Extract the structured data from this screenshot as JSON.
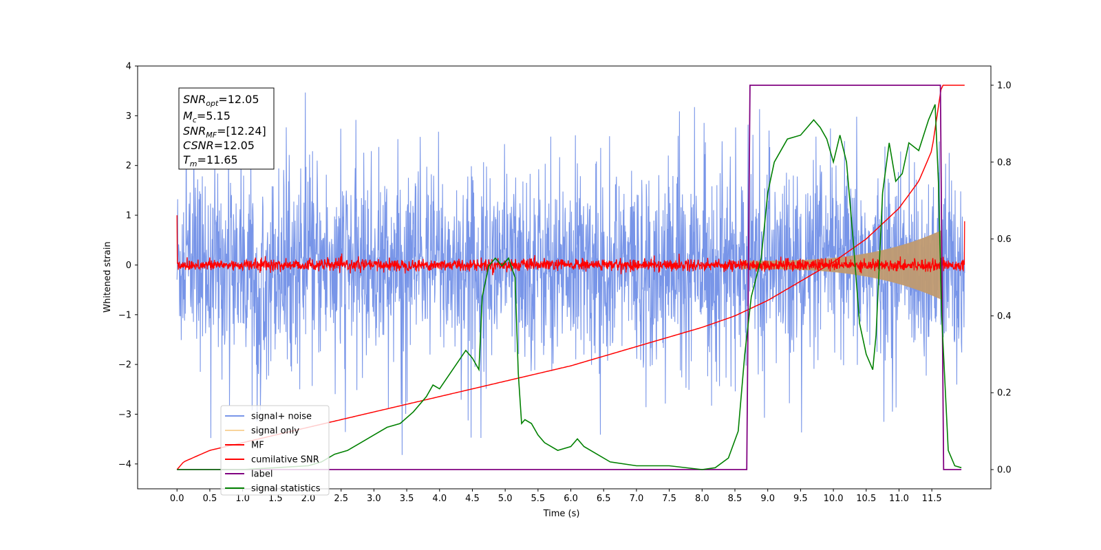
{
  "chart_data": {
    "type": "line",
    "xlabel": "Time (s)",
    "ylabel": "Whitened strain",
    "xlim": [
      -0.6,
      12.4
    ],
    "ylim": [
      -4.5,
      4.0
    ],
    "y2lim": [
      -0.05,
      1.05
    ],
    "x_ticks": [
      "0.0",
      "0.5",
      "1.0",
      "1.5",
      "2.0",
      "2.5",
      "3.0",
      "3.5",
      "4.0",
      "4.5",
      "5.0",
      "5.5",
      "6.0",
      "6.5",
      "7.0",
      "7.5",
      "8.0",
      "8.5",
      "9.0",
      "9.5",
      "10.0",
      "10.5",
      "11.0",
      "11.5"
    ],
    "y_ticks": [
      "4",
      "3",
      "2",
      "1",
      "0",
      "−1",
      "−2",
      "−3",
      "−4"
    ],
    "y2_ticks": [
      "1.0",
      "0.8",
      "0.6",
      "0.4",
      "0.2",
      "0.0"
    ],
    "legend_position": "lower-left",
    "info_box": {
      "snr_opt": {
        "base": "SNR",
        "sub": "opt",
        "value": "=12.05"
      },
      "mc": {
        "base": "M",
        "sub": "c",
        "value": "=5.15"
      },
      "snr_mf": {
        "base": "SNR",
        "sub": "MF",
        "value": "=[12.24]"
      },
      "csnr": {
        "base": "CSNR",
        "sub": "",
        "value": "=12.05"
      },
      "tm": {
        "base": "T",
        "sub": "m",
        "value": "=11.65"
      }
    },
    "series": [
      {
        "name": "signal+ noise",
        "color": "#7895e8",
        "axis": "left",
        "kind": "noise",
        "x_range": [
          0.0,
          12.0
        ],
        "std": 1.0,
        "max_abs": 3.55
      },
      {
        "name": "signal only",
        "color": "#f5c57a",
        "axis": "left",
        "kind": "chirp",
        "x_range": [
          8.6,
          11.65
        ],
        "amplitude_end": 0.7
      },
      {
        "name": "MF",
        "color": "#ff0000",
        "axis": "left",
        "kind": "noise",
        "x_range": [
          0.0,
          12.0
        ],
        "std": 0.06,
        "edge_values": [
          1.0,
          0.88
        ]
      },
      {
        "name": "cumilative SNR",
        "color": "#ff0000",
        "axis": "right",
        "x": [
          0.0,
          0.1,
          0.5,
          1.0,
          2.0,
          3.0,
          4.0,
          5.0,
          6.0,
          7.0,
          8.0,
          8.5,
          9.0,
          9.5,
          10.0,
          10.5,
          11.0,
          11.3,
          11.5,
          11.65,
          12.0
        ],
        "y": [
          0.0,
          0.02,
          0.05,
          0.07,
          0.11,
          0.15,
          0.19,
          0.23,
          0.27,
          0.32,
          0.37,
          0.4,
          0.44,
          0.49,
          0.54,
          0.6,
          0.68,
          0.75,
          0.83,
          1.0,
          1.0
        ]
      },
      {
        "name": "label",
        "color": "#800080",
        "axis": "right",
        "x": [
          0.0,
          8.68,
          8.73,
          11.63,
          11.68,
          11.95
        ],
        "y": [
          0.0,
          0.0,
          1.0,
          1.0,
          0.0,
          0.0
        ]
      },
      {
        "name": "signal statistics",
        "color": "#008000",
        "axis": "right",
        "x": [
          0.0,
          0.5,
          1.0,
          1.5,
          2.0,
          2.2,
          2.4,
          2.6,
          2.8,
          3.0,
          3.2,
          3.4,
          3.6,
          3.8,
          3.9,
          4.0,
          4.2,
          4.4,
          4.5,
          4.6,
          4.65,
          4.75,
          4.85,
          4.95,
          5.05,
          5.15,
          5.2,
          5.25,
          5.3,
          5.4,
          5.5,
          5.6,
          5.8,
          6.0,
          6.1,
          6.2,
          6.4,
          6.6,
          7.0,
          7.5,
          8.0,
          8.2,
          8.4,
          8.55,
          8.65,
          8.75,
          8.9,
          9.0,
          9.1,
          9.3,
          9.5,
          9.7,
          9.8,
          9.9,
          10.0,
          10.1,
          10.2,
          10.3,
          10.4,
          10.5,
          10.6,
          10.65,
          10.75,
          10.85,
          10.95,
          11.05,
          11.15,
          11.3,
          11.45,
          11.55,
          11.6,
          11.65,
          11.75,
          11.85,
          11.95
        ],
        "y": [
          0.0,
          0.0,
          0.0,
          0.005,
          0.01,
          0.02,
          0.04,
          0.05,
          0.07,
          0.09,
          0.11,
          0.12,
          0.15,
          0.19,
          0.22,
          0.21,
          0.26,
          0.31,
          0.29,
          0.26,
          0.45,
          0.53,
          0.55,
          0.53,
          0.55,
          0.5,
          0.25,
          0.12,
          0.13,
          0.12,
          0.09,
          0.07,
          0.05,
          0.06,
          0.08,
          0.06,
          0.04,
          0.02,
          0.01,
          0.01,
          0.0,
          0.005,
          0.03,
          0.1,
          0.3,
          0.45,
          0.55,
          0.72,
          0.8,
          0.86,
          0.87,
          0.91,
          0.89,
          0.86,
          0.8,
          0.87,
          0.8,
          0.6,
          0.38,
          0.3,
          0.26,
          0.35,
          0.72,
          0.85,
          0.75,
          0.77,
          0.85,
          0.83,
          0.91,
          0.95,
          0.75,
          0.4,
          0.05,
          0.01,
          0.005
        ]
      }
    ]
  }
}
